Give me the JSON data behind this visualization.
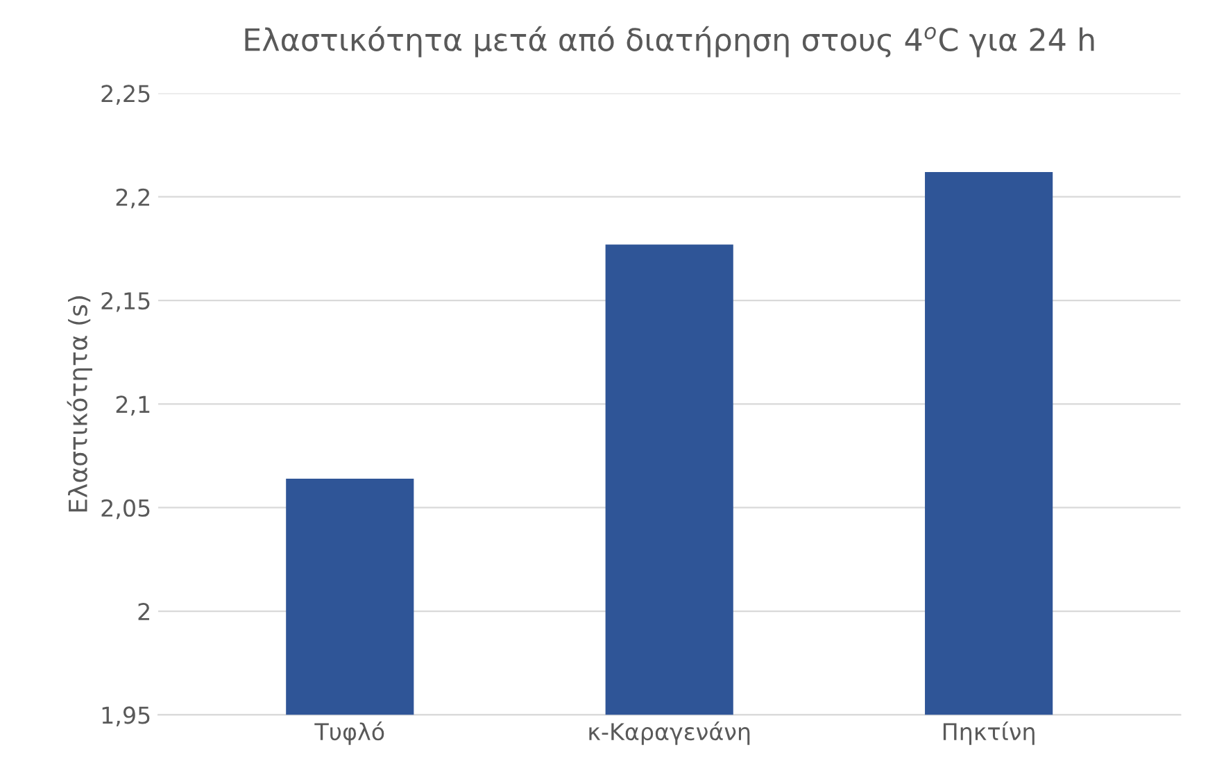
{
  "chart_data": {
    "type": "bar",
    "title": "Ελαστικότητα μετά από διατήρηση στους 4$^{o}$C για 24 h",
    "ylabel": "Ελαστικότητα (s)",
    "categories": [
      "Τυφλό",
      "κ-Καραγενάνη",
      "Πηκτίνη"
    ],
    "values": [
      2.064,
      2.177,
      2.212
    ],
    "color": "#2f5597",
    "ylim": [
      1.95,
      2.25
    ],
    "yticks": [
      {
        "value": 1.95,
        "label": "1,95"
      },
      {
        "value": 2,
        "label": "2"
      },
      {
        "value": 2.05,
        "label": "2,05"
      },
      {
        "value": 2.1,
        "label": "2,1"
      },
      {
        "value": 2.15,
        "label": "2,15"
      },
      {
        "value": 2.2,
        "label": "2,2"
      },
      {
        "value": 2.25,
        "label": "2,25"
      }
    ],
    "grid": "y",
    "legend": false
  }
}
